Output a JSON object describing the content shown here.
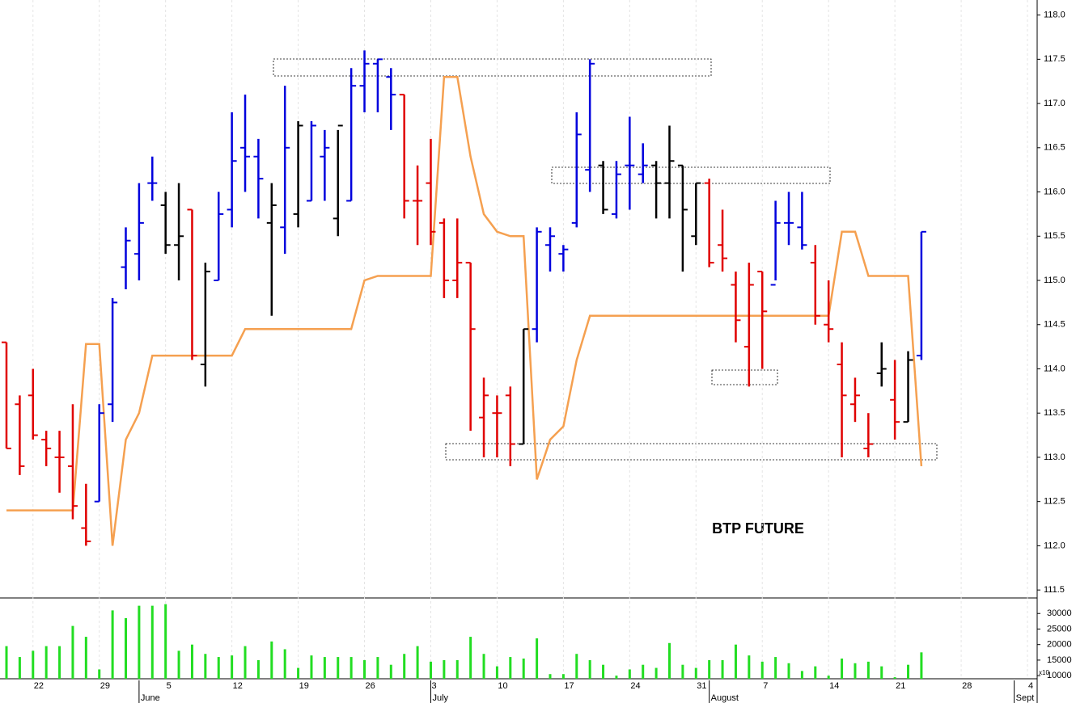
{
  "chart_data": [
    {
      "type": "ohlc",
      "annotation": "BTP FUTURE",
      "categories": [
        null,
        null,
        "22",
        null,
        null,
        null,
        null,
        "29",
        null,
        null,
        null,
        null,
        "5",
        null,
        null,
        null,
        null,
        "12",
        null,
        null,
        null,
        null,
        "19",
        null,
        null,
        null,
        null,
        "26",
        null,
        null,
        null,
        null,
        "3",
        null,
        null,
        null,
        null,
        "10",
        null,
        null,
        null,
        null,
        "17",
        null,
        null,
        null,
        null,
        "24",
        null,
        null,
        null,
        null,
        "31",
        null,
        null,
        null,
        null,
        "7",
        null,
        null,
        null,
        null,
        "14",
        null,
        null,
        null,
        null,
        "21",
        null,
        null,
        null,
        null,
        "28",
        null,
        null,
        null,
        null,
        "4"
      ],
      "months": [
        "June",
        "July",
        "August",
        "Sept"
      ],
      "open": [
        114.3,
        113.6,
        113.7,
        113.2,
        113.0,
        112.9,
        112.2,
        112.5,
        113.6,
        115.15,
        115.3,
        116.1,
        115.85,
        115.4,
        115.8,
        114.05,
        115.0,
        115.8,
        116.5,
        116.4,
        115.65,
        115.6,
        115.75,
        115.9,
        116.4,
        115.7,
        115.9,
        117.2,
        117.45,
        117.3,
        117.1,
        115.9,
        116.1,
        115.65,
        115.0,
        115.2,
        113.45,
        113.5,
        113.7,
        113.15,
        114.45,
        115.4,
        115.3,
        115.65,
        116.25,
        116.3,
        115.75,
        116.3,
        116.2,
        116.3,
        116.1,
        116.3,
        115.5,
        116.1,
        115.4,
        114.95,
        114.25,
        115.1,
        114.95,
        115.65,
        115.6,
        115.2,
        114.5,
        114.05,
        113.6,
        113.1,
        113.95,
        113.65,
        113.4,
        114.15,
        null,
        null,
        null,
        null,
        null,
        null,
        null,
        null
      ],
      "high": [
        114.3,
        113.7,
        114.0,
        113.3,
        113.3,
        113.6,
        112.7,
        113.6,
        114.8,
        115.6,
        116.1,
        116.4,
        116.0,
        116.1,
        115.8,
        115.2,
        116.0,
        116.9,
        117.1,
        116.6,
        116.1,
        117.2,
        116.8,
        116.8,
        116.7,
        116.7,
        117.4,
        117.6,
        117.5,
        117.4,
        117.1,
        116.3,
        116.6,
        115.7,
        115.7,
        115.2,
        113.9,
        113.7,
        113.8,
        114.45,
        115.6,
        115.6,
        115.4,
        116.9,
        117.5,
        116.35,
        116.35,
        116.85,
        116.55,
        116.35,
        116.75,
        116.3,
        116.1,
        116.15,
        115.8,
        115.1,
        115.2,
        115.1,
        115.9,
        116.0,
        116.0,
        115.4,
        115.0,
        114.3,
        113.9,
        113.5,
        114.3,
        114.1,
        114.2,
        115.55,
        null,
        null,
        null,
        null,
        null,
        null,
        null,
        null
      ],
      "low": [
        113.1,
        112.8,
        113.2,
        112.9,
        112.6,
        112.3,
        112.0,
        112.5,
        113.4,
        114.9,
        115.0,
        115.9,
        115.3,
        115.0,
        114.1,
        113.8,
        115.0,
        115.6,
        116.0,
        115.7,
        114.6,
        115.3,
        115.6,
        115.9,
        115.9,
        115.5,
        115.9,
        116.9,
        116.9,
        116.7,
        115.7,
        115.4,
        115.4,
        114.8,
        114.8,
        113.3,
        113.0,
        113.0,
        112.9,
        113.15,
        114.3,
        115.1,
        115.1,
        115.6,
        116.0,
        115.75,
        115.7,
        115.8,
        116.1,
        115.7,
        115.7,
        115.1,
        115.4,
        115.15,
        115.1,
        114.3,
        113.8,
        114.0,
        115.0,
        115.4,
        115.35,
        114.5,
        114.3,
        113.0,
        113.4,
        113.0,
        113.8,
        113.2,
        113.4,
        114.1,
        null,
        null,
        null,
        null,
        null,
        null,
        null,
        null
      ],
      "close": [
        113.1,
        112.9,
        113.25,
        113.1,
        113.0,
        112.45,
        112.05,
        113.5,
        114.75,
        115.45,
        115.65,
        116.1,
        115.4,
        115.5,
        114.15,
        115.1,
        115.75,
        116.35,
        116.4,
        116.15,
        115.85,
        116.5,
        116.75,
        116.75,
        116.5,
        116.75,
        117.2,
        117.45,
        117.5,
        117.1,
        115.9,
        115.9,
        115.55,
        115.0,
        115.2,
        114.45,
        113.7,
        113.5,
        113.15,
        114.45,
        115.55,
        115.5,
        115.35,
        116.65,
        117.45,
        115.8,
        116.2,
        116.3,
        116.3,
        116.1,
        116.35,
        115.8,
        116.1,
        115.2,
        115.25,
        114.55,
        114.95,
        114.65,
        115.65,
        115.65,
        115.4,
        114.6,
        114.45,
        113.7,
        113.7,
        113.15,
        114.0,
        113.4,
        114.1,
        115.55,
        null,
        null,
        null,
        null,
        null,
        null,
        null,
        null
      ],
      "bar_colors": [
        "#e00000",
        "#e00000",
        "#e00000",
        "#e00000",
        "#e00000",
        "#e00000",
        "#e00000",
        "#0000dd",
        "#0000dd",
        "#0000dd",
        "#0000dd",
        "#0000dd",
        "#000000",
        "#000000",
        "#e00000",
        "#000000",
        "#0000dd",
        "#0000dd",
        "#0000dd",
        "#0000dd",
        "#000000",
        "#0000dd",
        "#000000",
        "#0000dd",
        "#0000dd",
        "#000000",
        "#0000dd",
        "#0000dd",
        "#0000dd",
        "#0000dd",
        "#e00000",
        "#e00000",
        "#e00000",
        "#e00000",
        "#e00000",
        "#e00000",
        "#e00000",
        "#e00000",
        "#e00000",
        "#000000",
        "#0000dd",
        "#0000dd",
        "#0000dd",
        "#0000dd",
        "#0000dd",
        "#000000",
        "#0000dd",
        "#0000dd",
        "#0000dd",
        "#000000",
        "#000000",
        "#000000",
        "#000000",
        "#e00000",
        "#e00000",
        "#e00000",
        "#e00000",
        "#e00000",
        "#0000dd",
        "#0000dd",
        "#0000dd",
        "#e00000",
        "#e00000",
        "#e00000",
        "#e00000",
        "#e00000",
        "#000000",
        "#e00000",
        "#000000",
        "#0000dd",
        null,
        null,
        null,
        null,
        null,
        null,
        null,
        null
      ],
      "line": {
        "color": "#f5a050",
        "values": [
          112.4,
          112.4,
          112.4,
          112.4,
          112.4,
          112.4,
          114.28,
          114.28,
          112.0,
          113.2,
          113.5,
          114.15,
          114.15,
          114.15,
          114.15,
          114.15,
          114.15,
          114.15,
          114.45,
          114.45,
          114.45,
          114.45,
          114.45,
          114.45,
          114.45,
          114.45,
          114.45,
          115.0,
          115.05,
          115.05,
          115.05,
          115.05,
          115.05,
          117.3,
          117.3,
          116.4,
          115.75,
          115.55,
          115.5,
          115.5,
          112.75,
          113.2,
          113.35,
          114.1,
          114.6,
          114.6,
          114.6,
          114.6,
          114.6,
          114.6,
          114.6,
          114.6,
          114.6,
          114.6,
          114.6,
          114.6,
          114.6,
          114.6,
          114.6,
          114.6,
          114.6,
          114.6,
          114.6,
          115.55,
          115.55,
          115.05,
          115.05,
          115.05,
          115.05,
          112.9,
          null,
          null,
          null,
          null,
          null,
          null,
          null,
          null
        ]
      },
      "ylim": [
        111.41,
        118.17
      ],
      "yticks": [
        111.5,
        {
          "value": 112,
          "label": "112.0"
        },
        112.5,
        {
          "value": 113,
          "label": "113.0"
        },
        113.5,
        {
          "value": 114,
          "label": "114.0"
        },
        114.5,
        {
          "value": 115,
          "label": "115.0"
        },
        115.5,
        {
          "value": 116,
          "label": "116.0"
        },
        116.5,
        {
          "value": 117,
          "label": "117.0"
        },
        117.5,
        {
          "value": 118,
          "label": "118.0"
        }
      ]
    },
    {
      "type": "bar",
      "color": "#22dd22",
      "unit": "x10",
      "values": [
        19500,
        16000,
        18000,
        19500,
        19500,
        26000,
        22500,
        12000,
        31000,
        28500,
        32500,
        32500,
        33000,
        18000,
        20000,
        17000,
        16000,
        16500,
        19500,
        15000,
        21000,
        18500,
        12500,
        16500,
        16000,
        16000,
        16000,
        15000,
        16000,
        13500,
        17000,
        19500,
        14500,
        15000,
        15000,
        22500,
        17000,
        13000,
        16000,
        15500,
        22000,
        10500,
        10500,
        17000,
        15000,
        13500,
        10000,
        12000,
        13500,
        12500,
        20500,
        13500,
        12500,
        15000,
        15000,
        20000,
        16500,
        14500,
        16000,
        14000,
        11500,
        13000,
        10000,
        15500,
        14000,
        14500,
        13000,
        9500,
        13500,
        17500,
        null,
        null,
        null,
        null,
        null,
        null,
        null,
        null
      ],
      "ylim": [
        9000,
        35000
      ],
      "yticks": [
        10000,
        15000,
        20000,
        25000,
        30000
      ]
    }
  ]
}
